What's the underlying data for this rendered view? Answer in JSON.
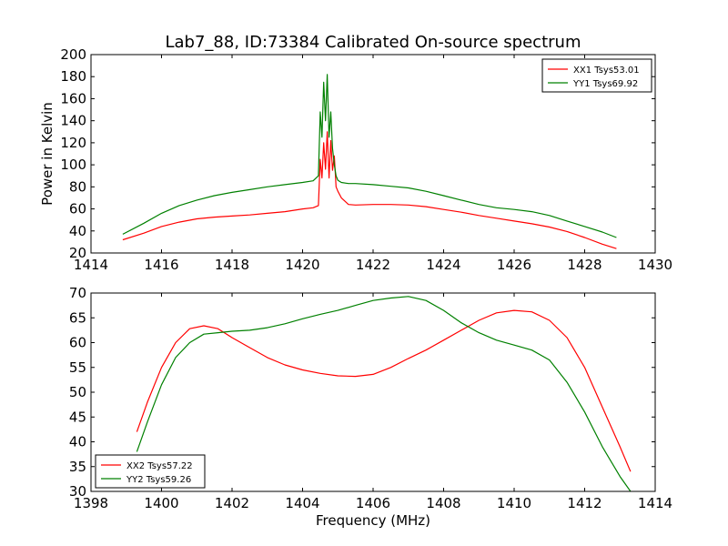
{
  "chart_data": [
    {
      "type": "line",
      "title": "Lab7_88, ID:73384 Calibrated On-source spectrum",
      "xlabel": "",
      "ylabel": "Power in Kelvin",
      "xlim": [
        1414,
        1430
      ],
      "ylim": [
        20,
        200
      ],
      "xticks": [
        1414,
        1416,
        1418,
        1420,
        1422,
        1424,
        1426,
        1428,
        1430
      ],
      "yticks": [
        20,
        40,
        60,
        80,
        100,
        120,
        140,
        160,
        180,
        200
      ],
      "legend_position": "top-right",
      "series": [
        {
          "name": "XX1 Tsys53.01",
          "color": "#ff0000",
          "x": [
            1414.9,
            1415.5,
            1416.0,
            1416.5,
            1417.0,
            1417.5,
            1418.0,
            1418.5,
            1419.0,
            1419.5,
            1420.0,
            1420.3,
            1420.45,
            1420.5,
            1420.55,
            1420.6,
            1420.65,
            1420.7,
            1420.75,
            1420.8,
            1420.85,
            1420.9,
            1420.95,
            1421.0,
            1421.1,
            1421.3,
            1421.5,
            1422.0,
            1422.5,
            1423.0,
            1423.5,
            1424.0,
            1424.5,
            1425.0,
            1425.5,
            1426.0,
            1426.5,
            1427.0,
            1427.5,
            1428.0,
            1428.5,
            1428.9
          ],
          "y": [
            32,
            38,
            44,
            48,
            51,
            52.5,
            53.5,
            54.5,
            56,
            57.5,
            60,
            61,
            63,
            105,
            88,
            120,
            96,
            130,
            88,
            122,
            95,
            108,
            80,
            76,
            70,
            64,
            63.5,
            64,
            64,
            63.5,
            62,
            59.5,
            57,
            54,
            51.5,
            49,
            46.5,
            43.5,
            39.5,
            34,
            28,
            24
          ]
        },
        {
          "name": "YY1 Tsys69.92",
          "color": "#008000",
          "x": [
            1414.9,
            1415.5,
            1416.0,
            1416.5,
            1417.0,
            1417.5,
            1418.0,
            1418.5,
            1419.0,
            1419.5,
            1420.0,
            1420.3,
            1420.45,
            1420.5,
            1420.55,
            1420.6,
            1420.65,
            1420.7,
            1420.75,
            1420.8,
            1420.85,
            1420.9,
            1420.95,
            1421.0,
            1421.1,
            1421.3,
            1421.5,
            1422.0,
            1422.5,
            1423.0,
            1423.5,
            1424.0,
            1424.5,
            1425.0,
            1425.5,
            1426.0,
            1426.5,
            1427.0,
            1427.5,
            1428.0,
            1428.5,
            1428.9
          ],
          "y": [
            37,
            47,
            56,
            63,
            68,
            72,
            75,
            77.5,
            80,
            82,
            84,
            85.5,
            90,
            148,
            125,
            175,
            140,
            182,
            125,
            148,
            115,
            100,
            90,
            86,
            84,
            83,
            83,
            82,
            80.5,
            79,
            76,
            72,
            68,
            64,
            61,
            59.5,
            57.5,
            54,
            49,
            44,
            39,
            34
          ]
        }
      ]
    },
    {
      "type": "line",
      "title": "",
      "xlabel": "Frequency (MHz)",
      "ylabel": "",
      "xlim": [
        1398,
        1414
      ],
      "ylim": [
        30,
        70
      ],
      "xticks": [
        1398,
        1400,
        1402,
        1404,
        1406,
        1408,
        1410,
        1412,
        1414
      ],
      "yticks": [
        30,
        35,
        40,
        45,
        50,
        55,
        60,
        65,
        70
      ],
      "legend_position": "bottom-left",
      "series": [
        {
          "name": "XX2 Tsys57.22",
          "color": "#ff0000",
          "x": [
            1399.3,
            1399.6,
            1400.0,
            1400.4,
            1400.8,
            1401.2,
            1401.6,
            1402.0,
            1402.5,
            1403.0,
            1403.5,
            1404.0,
            1404.5,
            1405.0,
            1405.5,
            1406.0,
            1406.5,
            1407.0,
            1407.5,
            1408.0,
            1408.5,
            1409.0,
            1409.5,
            1410.0,
            1410.5,
            1411.0,
            1411.5,
            1412.0,
            1412.5,
            1413.0,
            1413.3
          ],
          "y": [
            42,
            48,
            55,
            60,
            62.8,
            63.4,
            62.8,
            61,
            59,
            57,
            55.5,
            54.5,
            53.8,
            53.3,
            53.2,
            53.6,
            55,
            56.8,
            58.5,
            60.5,
            62.5,
            64.5,
            66,
            66.5,
            66.2,
            64.5,
            61,
            55,
            47,
            39,
            34
          ]
        },
        {
          "name": "YY2 Tsys59.26",
          "color": "#008000",
          "x": [
            1399.3,
            1399.6,
            1400.0,
            1400.4,
            1400.8,
            1401.2,
            1401.6,
            1402.0,
            1402.5,
            1403.0,
            1403.5,
            1404.0,
            1404.5,
            1405.0,
            1405.5,
            1406.0,
            1406.5,
            1407.0,
            1407.5,
            1408.0,
            1408.5,
            1409.0,
            1409.5,
            1410.0,
            1410.5,
            1411.0,
            1411.5,
            1412.0,
            1412.5,
            1413.0,
            1413.3
          ],
          "y": [
            38,
            44,
            51.5,
            57,
            60,
            61.7,
            62,
            62.3,
            62.5,
            63,
            63.8,
            64.8,
            65.7,
            66.5,
            67.5,
            68.5,
            69,
            69.3,
            68.5,
            66.5,
            64,
            62,
            60.5,
            59.5,
            58.5,
            56.5,
            52,
            46,
            39,
            33,
            30
          ]
        }
      ]
    }
  ]
}
